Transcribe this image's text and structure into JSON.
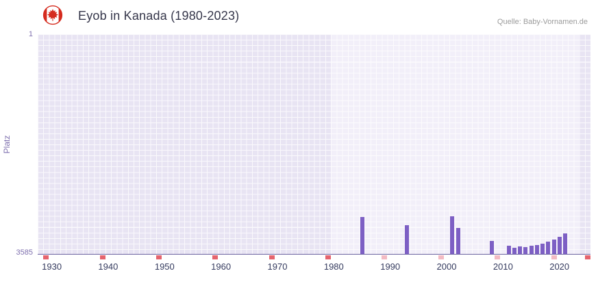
{
  "header": {
    "title": "Eyob in Kanada (1980-2023)",
    "source": "Quelle: Baby-Vornamen.de"
  },
  "chart_data": {
    "type": "bar",
    "title": "Eyob in Kanada (1980-2023)",
    "xlabel": "",
    "ylabel": "Platz",
    "y_axis": {
      "min": 1,
      "max": 3585,
      "inverted": true,
      "top_label": "1",
      "bottom_label": "3585"
    },
    "x_axis": {
      "min": 1927.5,
      "max": 2025.5,
      "tick_labels": [
        1930,
        1940,
        1950,
        1960,
        1970,
        1980,
        1990,
        2000,
        2010,
        2020
      ]
    },
    "highlight_range": [
      1979.5,
      2023.5
    ],
    "grid": "on",
    "legend": "off",
    "series": [
      {
        "name": "Platz",
        "points": [
          {
            "year": 1985,
            "rank": 2975
          },
          {
            "year": 1993,
            "rank": 3110
          },
          {
            "year": 2001,
            "rank": 2960
          },
          {
            "year": 2002,
            "rank": 3150
          },
          {
            "year": 2008,
            "rank": 3360
          },
          {
            "year": 2011,
            "rank": 3440
          },
          {
            "year": 2012,
            "rank": 3470
          },
          {
            "year": 2013,
            "rank": 3450
          },
          {
            "year": 2014,
            "rank": 3460
          },
          {
            "year": 2015,
            "rank": 3445
          },
          {
            "year": 2016,
            "rank": 3430
          },
          {
            "year": 2017,
            "rank": 3405
          },
          {
            "year": 2018,
            "rank": 3375
          },
          {
            "year": 2019,
            "rank": 3335
          },
          {
            "year": 2020,
            "rank": 3290
          },
          {
            "year": 2021,
            "rank": 3235
          }
        ]
      }
    ],
    "missing_rank_marker_years": {
      "strong": [
        1929,
        1939,
        1949,
        1959,
        1969,
        1979,
        2025
      ],
      "light": [
        1989,
        1999,
        2009,
        2019
      ]
    },
    "colors": {
      "bar": "#7d5fc4",
      "plot_background": "#e8e4f3",
      "highlight_background": "#f2eff9",
      "grid_line": "#ffffff",
      "axis_line": "#6b63a0",
      "y_label": "#7e6fae",
      "x_label": "#343a5e",
      "marker_strong": "#e5646e",
      "marker_light": "#f3bac3",
      "flag_red": "#d52b1e"
    }
  }
}
